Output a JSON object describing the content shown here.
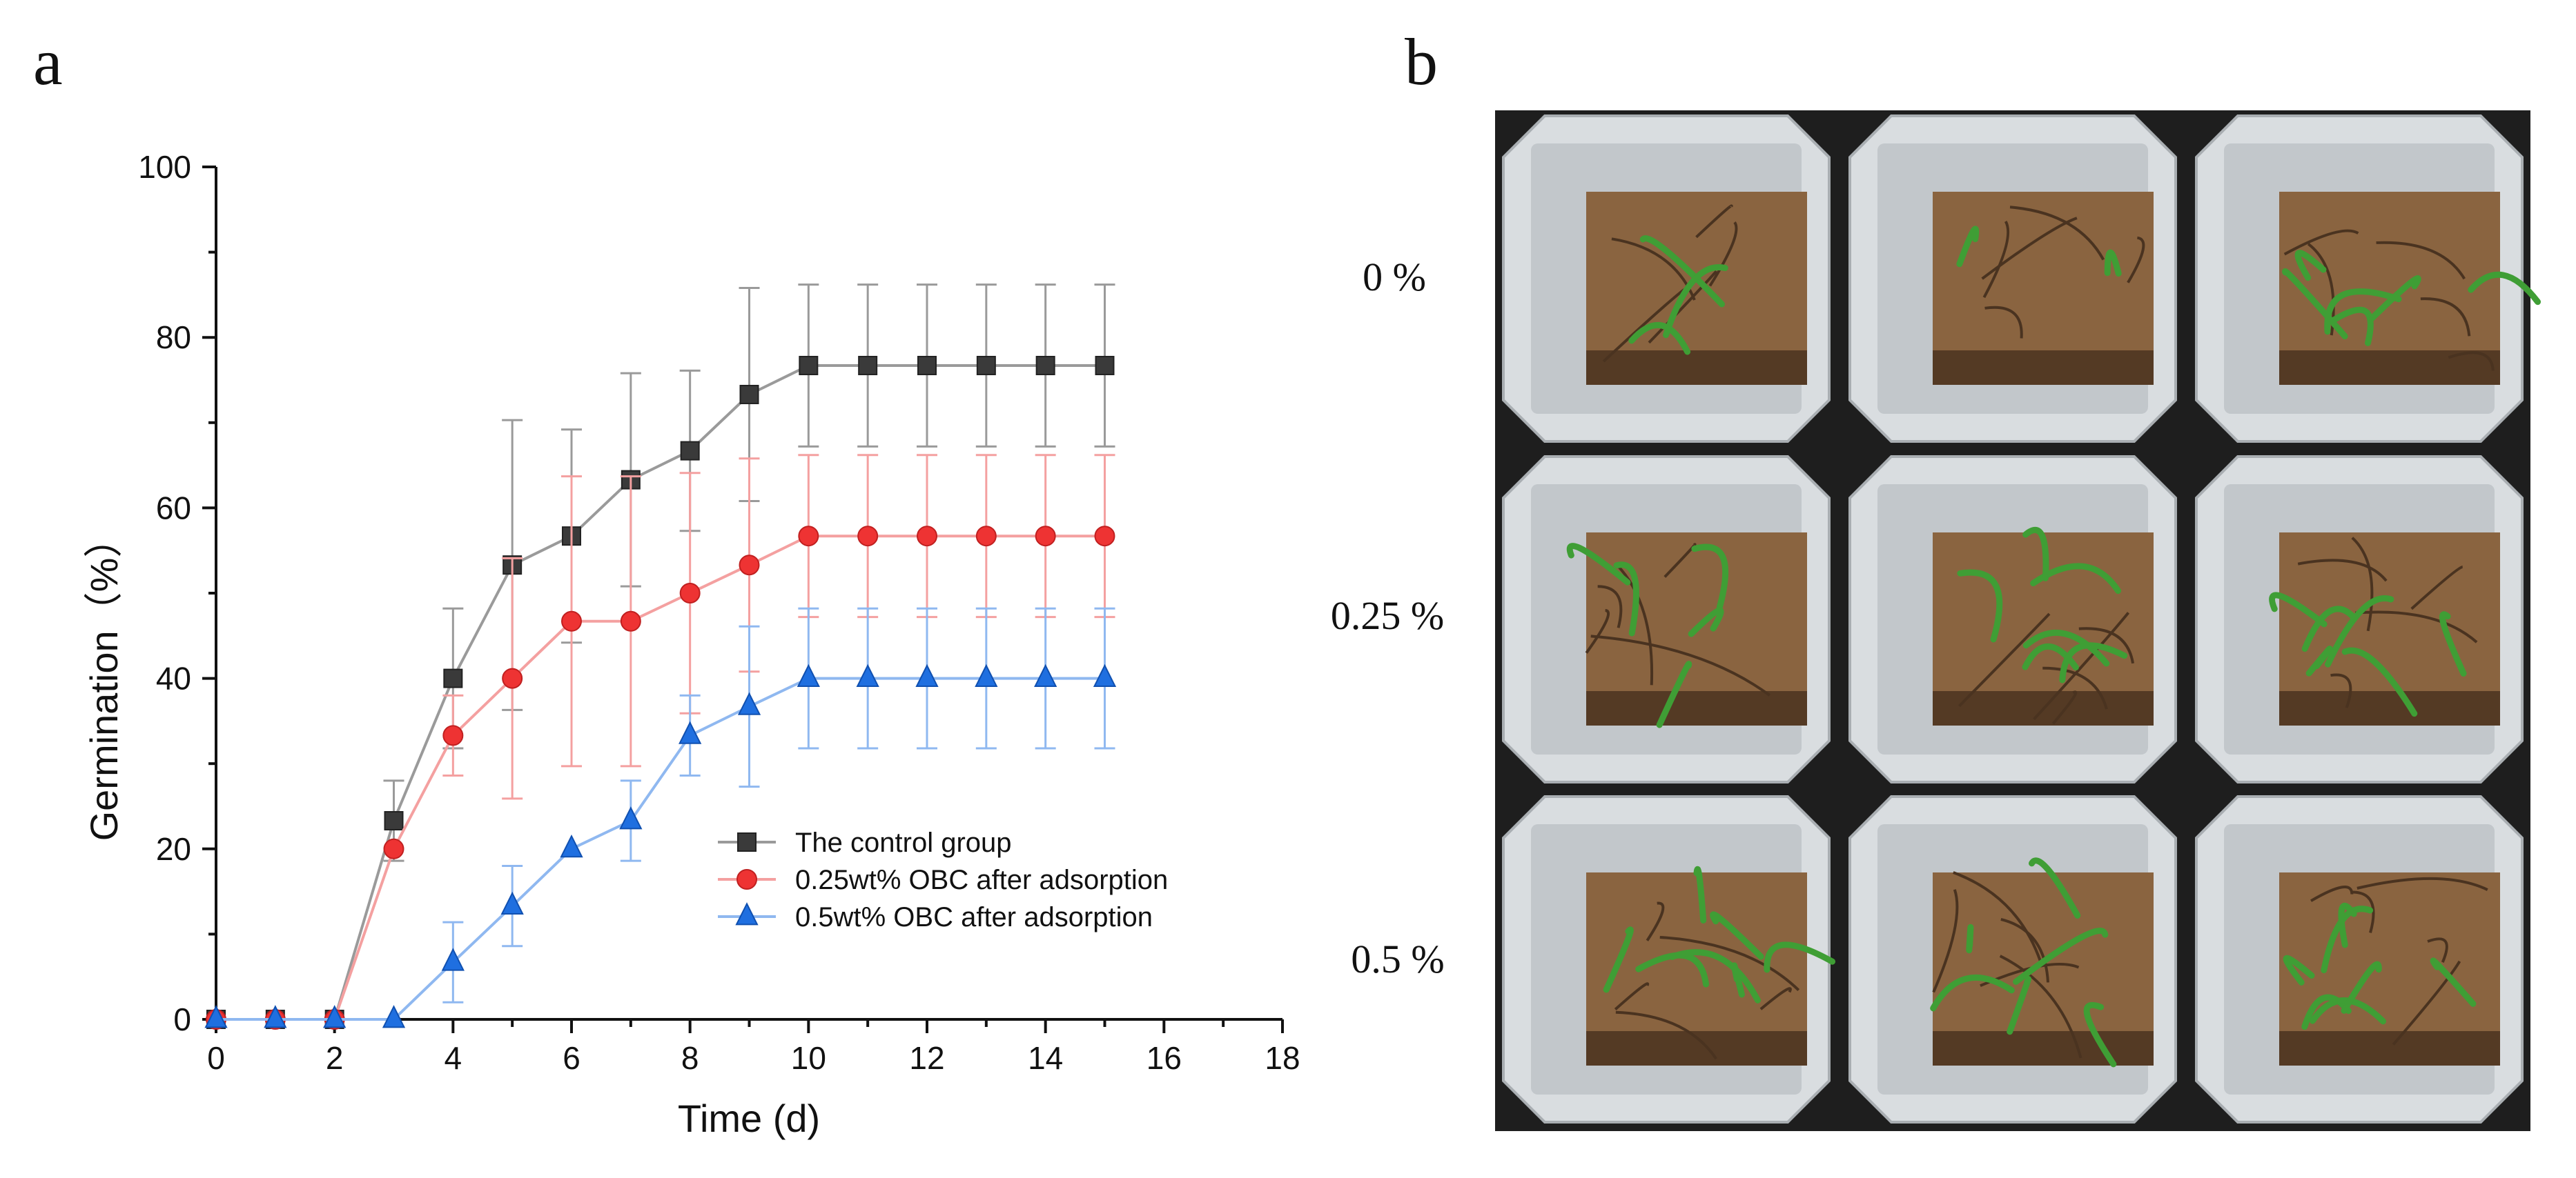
{
  "panels": {
    "a_label": "a",
    "b_label": "b"
  },
  "chart_data": {
    "type": "line",
    "title": "",
    "xlabel": "Time (d)",
    "ylabel": "Germination（%）",
    "xlim": [
      0,
      18
    ],
    "ylim": [
      0,
      100
    ],
    "x_ticks": [
      "0",
      "2",
      "4",
      "6",
      "8",
      "10",
      "12",
      "14",
      "16",
      "18"
    ],
    "y_ticks": [
      "0",
      "20",
      "40",
      "60",
      "80",
      "100"
    ],
    "x": [
      0,
      1,
      2,
      3,
      4,
      5,
      6,
      7,
      8,
      9,
      10,
      11,
      12,
      13,
      14,
      15
    ],
    "grid": false,
    "legend_position": "lower-right",
    "series": [
      {
        "name": "The control group",
        "color": "#3a3a3a",
        "error_color": "#9a9a9a",
        "marker": "square",
        "values": [
          0,
          0,
          0,
          23.3,
          40.0,
          53.3,
          56.7,
          63.3,
          66.7,
          73.3,
          76.7,
          76.7,
          76.7,
          76.7,
          76.7,
          76.7
        ],
        "errors": [
          0,
          0,
          0,
          4.7,
          8.2,
          17.0,
          12.5,
          12.5,
          9.4,
          12.5,
          9.5,
          9.5,
          9.5,
          9.5,
          9.5,
          9.5
        ]
      },
      {
        "name": "0.25wt% OBC after adsorption",
        "color": "#ee3333",
        "error_color": "#f4a0a0",
        "marker": "circle",
        "values": [
          0,
          0,
          0,
          20.0,
          33.3,
          40.0,
          46.7,
          46.7,
          50.0,
          53.3,
          56.7,
          56.7,
          56.7,
          56.7,
          56.7,
          56.7
        ],
        "errors": [
          0,
          0,
          0,
          0,
          4.7,
          14.1,
          17.0,
          17.0,
          14.1,
          12.5,
          9.5,
          9.5,
          9.5,
          9.5,
          9.5,
          9.5
        ]
      },
      {
        "name": "0.5wt% OBC after adsorption",
        "color": "#1f6fe0",
        "error_color": "#8fb8f0",
        "marker": "triangle",
        "values": [
          0,
          0,
          0,
          0,
          6.7,
          13.3,
          20.0,
          23.3,
          33.3,
          36.7,
          40.0,
          40.0,
          40.0,
          40.0,
          40.0,
          40.0
        ],
        "errors": [
          0,
          0,
          0,
          0,
          4.7,
          4.7,
          0,
          4.7,
          4.7,
          9.4,
          8.2,
          8.2,
          8.2,
          8.2,
          8.2,
          8.2
        ]
      }
    ]
  },
  "photo": {
    "row_labels": [
      "0 %",
      "0.25 %",
      "0.5 %"
    ],
    "colors": {
      "tray_bg": "#1e1e1e",
      "pot_rim": "#d9dde0",
      "pot_wall": "#c2c7cb",
      "soil": "#8a6440",
      "soil_dark": "#4a3320",
      "seedling": "#3f9e35"
    }
  }
}
